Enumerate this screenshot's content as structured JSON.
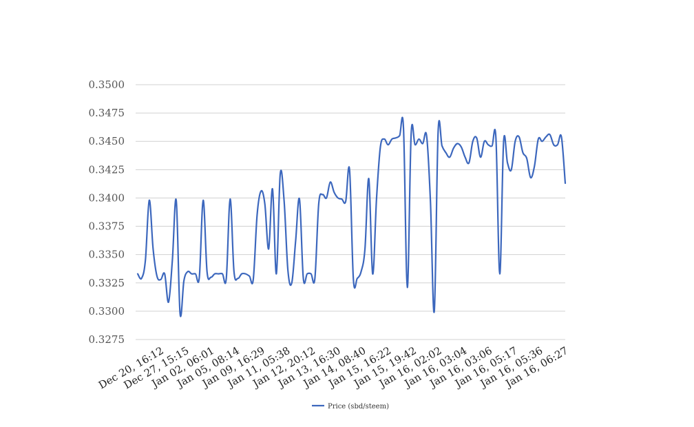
{
  "chart_data": {
    "type": "line",
    "title": "",
    "xlabel": "",
    "ylabel": "",
    "ylim": [
      0.3275,
      0.35
    ],
    "yticks": [
      "0.3275",
      "0.3300",
      "0.3325",
      "0.3350",
      "0.3375",
      "0.3400",
      "0.3425",
      "0.3450",
      "0.3475",
      "0.3500"
    ],
    "xticks": [
      "Dec 20, 16:12",
      "Dec 27, 15:15",
      "Jan 02, 06:01",
      "Jan 05, 08:14",
      "Jan 09, 16:29",
      "Jan 11, 05:38",
      "Jan 12, 20:12",
      "Jan 13, 16:30",
      "Jan 14, 08:40",
      "Jan 15, 16:22",
      "Jan 15, 19:42",
      "Jan 16, 02:02",
      "Jan 16, 03:04",
      "Jan 16, 03:06",
      "Jan 16, 05:17",
      "Jan 16, 05:36",
      "Jan 16, 06:27"
    ],
    "grid": true,
    "legend_position": "bottom",
    "colors": {
      "series": "#3c67bd",
      "grid": "#d0d0d0"
    },
    "series": [
      {
        "name": "Price (sbd/steem)",
        "values": [
          0.3333,
          0.3329,
          0.3345,
          0.3398,
          0.3355,
          0.3331,
          0.3328,
          0.3333,
          0.3308,
          0.3345,
          0.3398,
          0.3298,
          0.3327,
          0.3335,
          0.3333,
          0.3333,
          0.333,
          0.3398,
          0.3335,
          0.333,
          0.3333,
          0.3333,
          0.3333,
          0.3329,
          0.3399,
          0.3335,
          0.3329,
          0.3333,
          0.3333,
          0.3331,
          0.3328,
          0.3385,
          0.3406,
          0.3395,
          0.3355,
          0.3408,
          0.3333,
          0.3421,
          0.3398,
          0.3336,
          0.3325,
          0.3362,
          0.3399,
          0.3329,
          0.3333,
          0.3333,
          0.3329,
          0.3395,
          0.3403,
          0.34,
          0.3414,
          0.3405,
          0.34,
          0.3399,
          0.3397,
          0.3425,
          0.3328,
          0.3329,
          0.3335,
          0.3355,
          0.3417,
          0.3333,
          0.3399,
          0.3445,
          0.3452,
          0.3447,
          0.3452,
          0.3453,
          0.3455,
          0.3462,
          0.3321,
          0.3457,
          0.3447,
          0.3452,
          0.3448,
          0.3455,
          0.3397,
          0.33,
          0.3459,
          0.3446,
          0.344,
          0.3436,
          0.3444,
          0.3448,
          0.3445,
          0.3436,
          0.3431,
          0.345,
          0.3453,
          0.3436,
          0.345,
          0.3447,
          0.3446,
          0.3453,
          0.3333,
          0.345,
          0.3431,
          0.3425,
          0.345,
          0.3454,
          0.344,
          0.3435,
          0.3418,
          0.3428,
          0.3452,
          0.345,
          0.3454,
          0.3456,
          0.3447,
          0.3447,
          0.3454,
          0.3413
        ]
      }
    ]
  }
}
